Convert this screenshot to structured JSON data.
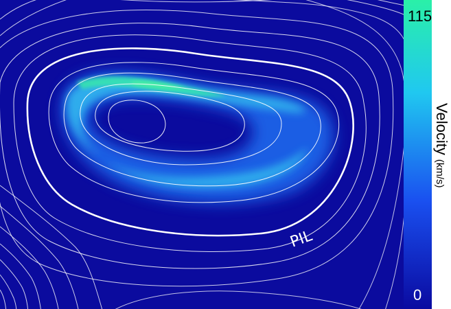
{
  "annotation": {
    "label": "PIL"
  },
  "colorbar": {
    "title": "Velocity",
    "unit": "(km/s)",
    "max_label": "115",
    "min_label": "0",
    "range": [
      0,
      115
    ],
    "colors": [
      "#0a0aa0",
      "#1a50f0",
      "#20c8f0",
      "#2af0a8"
    ]
  },
  "colors": {
    "background": "#0b0b9e",
    "contour": "#ffffff",
    "flow_low": "#1a63e8",
    "flow_mid": "#33b6ee",
    "flow_high": "#38e6b0"
  }
}
